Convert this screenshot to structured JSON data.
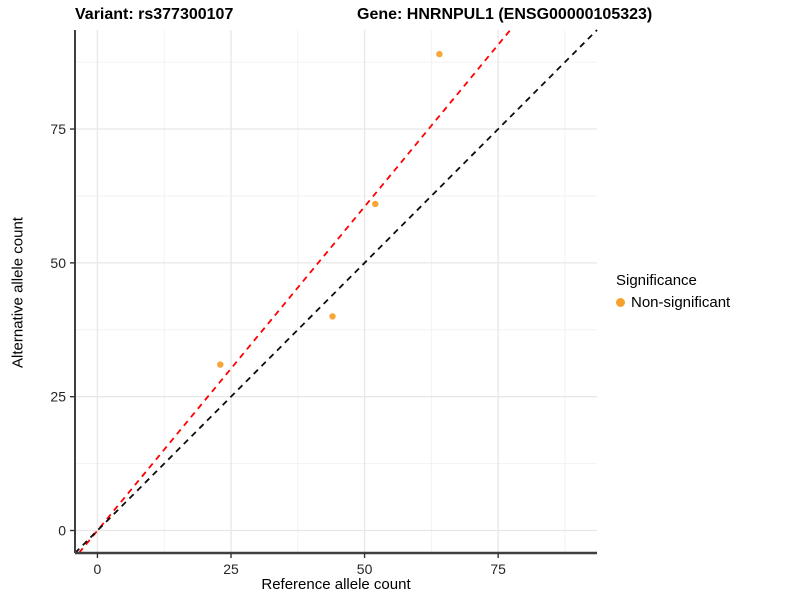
{
  "chart_data": {
    "type": "scatter",
    "title_left": "Variant: rs377300107",
    "title_right": "Gene: HNRNPUL1 (ENSG00000105323)",
    "xlabel": "Reference allele count",
    "ylabel": "Alternative allele count",
    "xlim": [
      -4.2,
      93.5
    ],
    "ylim": [
      -4.2,
      93.5
    ],
    "x_ticks": [
      0,
      25,
      50,
      75
    ],
    "y_ticks": [
      0,
      25,
      50,
      75
    ],
    "grid": {
      "major": true,
      "minor": true,
      "major_color": "#E7E7E7",
      "minor_color": "#F2F2F2"
    },
    "axis_line_color": "#404040",
    "series": [
      {
        "name": "Non-significant",
        "color": "#F7A12C",
        "points": [
          [
            23,
            31
          ],
          [
            44,
            40
          ],
          [
            52,
            61
          ],
          [
            64,
            89
          ]
        ]
      }
    ],
    "lines": [
      {
        "name": "fitted-ratio-line",
        "slope": 1.21,
        "intercept": 0,
        "color": "#FF0000",
        "dashed": true
      },
      {
        "name": "identity-line",
        "slope": 1,
        "intercept": 0,
        "color": "#0D0D0D",
        "dashed": true
      }
    ],
    "legend": {
      "title": "Significance",
      "position": "right",
      "items": [
        {
          "label": "Non-significant",
          "color": "#F7A12C"
        }
      ]
    }
  }
}
